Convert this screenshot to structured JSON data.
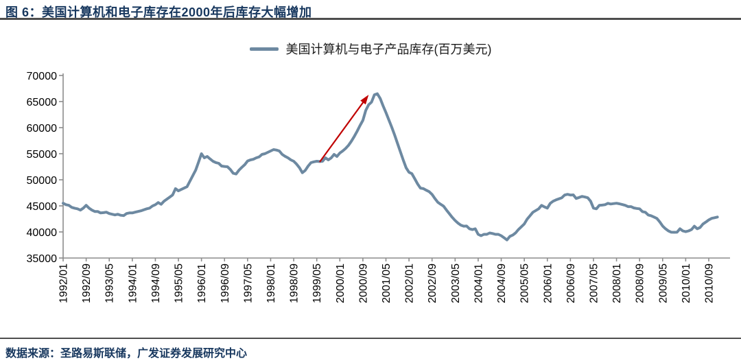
{
  "header": {
    "title": "图 6：美国计算机和电子库存在2000年后库存大幅增加"
  },
  "legend": {
    "label": "美国计算机与电子产品库存(百万美元)"
  },
  "footer": {
    "source": "数据来源：圣路易斯联储，广发证券发展研究中心"
  },
  "colors": {
    "line": "#6d89a1",
    "arrow": "#c00000",
    "title_text": "#17375e",
    "rule": "#4d4d4d",
    "axis": "#8c8c8c",
    "tick_text": "#000000"
  },
  "chart_data": {
    "type": "line",
    "title": "",
    "xlabel": "",
    "ylabel": "",
    "ylim": [
      35000,
      70000
    ],
    "y_ticks": [
      35000,
      40000,
      45000,
      50000,
      55000,
      60000,
      65000,
      70000
    ],
    "grid": false,
    "legend_position": "top-center",
    "x_start": "1992/01",
    "x_frequency": "monthly",
    "x_tick_interval_months": 8,
    "x_tick_labels": [
      "1992/01",
      "1992/09",
      "1993/05",
      "1994/01",
      "1994/09",
      "1995/05",
      "1996/01",
      "1996/09",
      "1997/05",
      "1998/01",
      "1998/09",
      "1999/05",
      "2000/01",
      "2000/09",
      "2001/05",
      "2002/01",
      "2002/09",
      "2003/05",
      "2004/01",
      "2004/09",
      "2005/05",
      "2006/01",
      "2006/09",
      "2007/05",
      "2008/01",
      "2008/09",
      "2009/05",
      "2010/01",
      "2010/09"
    ],
    "series": [
      {
        "name": "美国计算机与电子产品库存(百万美元)",
        "unit": "百万美元",
        "values": [
          45500,
          45230,
          45100,
          44710,
          44550,
          44440,
          44180,
          44570,
          45100,
          44570,
          44180,
          43920,
          43920,
          43650,
          43700,
          43790,
          43520,
          43390,
          43260,
          43390,
          43200,
          43130,
          43520,
          43650,
          43650,
          43790,
          43920,
          44050,
          44250,
          44440,
          44570,
          44970,
          45230,
          45630,
          45300,
          45890,
          46290,
          46690,
          47090,
          48300,
          47880,
          48140,
          48410,
          48670,
          49740,
          50800,
          51860,
          53400,
          55000,
          54210,
          54470,
          54000,
          53550,
          53300,
          53160,
          52630,
          52550,
          52500,
          51970,
          51250,
          51100,
          51840,
          52400,
          52890,
          53600,
          53810,
          53940,
          54210,
          54400,
          54870,
          55000,
          55260,
          55530,
          55790,
          55700,
          55530,
          54870,
          54500,
          54210,
          53810,
          53550,
          53000,
          52300,
          51350,
          51800,
          52630,
          53290,
          53450,
          53550,
          53500,
          53550,
          54210,
          53810,
          54200,
          54870,
          54470,
          55130,
          55530,
          56000,
          56600,
          57400,
          58300,
          59300,
          60400,
          61400,
          63300,
          64400,
          64900,
          66300,
          66500,
          65600,
          64200,
          62900,
          61500,
          60100,
          58600,
          57000,
          55400,
          53800,
          52300,
          51430,
          51170,
          50200,
          49200,
          48400,
          48300,
          48000,
          47730,
          47200,
          46400,
          45700,
          45300,
          44950,
          44200,
          43500,
          42800,
          42200,
          41700,
          41300,
          41100,
          41130,
          40600,
          40450,
          40600,
          39540,
          39280,
          39540,
          39540,
          39800,
          39700,
          39540,
          39540,
          39280,
          38880,
          38480,
          39150,
          39400,
          39810,
          40470,
          41000,
          41530,
          42450,
          43110,
          43770,
          44100,
          44430,
          45090,
          44800,
          44560,
          45490,
          45890,
          46150,
          46350,
          46550,
          47080,
          47210,
          47080,
          47100,
          46420,
          46600,
          46820,
          46700,
          46550,
          45890,
          44560,
          44430,
          45090,
          45150,
          45220,
          45490,
          45360,
          45430,
          45500,
          45400,
          45250,
          45100,
          44850,
          44850,
          44600,
          44500,
          44430,
          43900,
          43770,
          43250,
          43110,
          42850,
          42590,
          41920,
          41130,
          40600,
          40200,
          39950,
          39940,
          39950,
          40600,
          40200,
          40050,
          40200,
          40450,
          41100,
          40600,
          40860,
          41530,
          41900,
          42300,
          42600,
          42720,
          42850
        ]
      }
    ],
    "annotation": {
      "type": "arrow",
      "from_month": "1999/06",
      "from_value": 53400,
      "to_month": "2000/11",
      "to_value": 66300
    }
  }
}
